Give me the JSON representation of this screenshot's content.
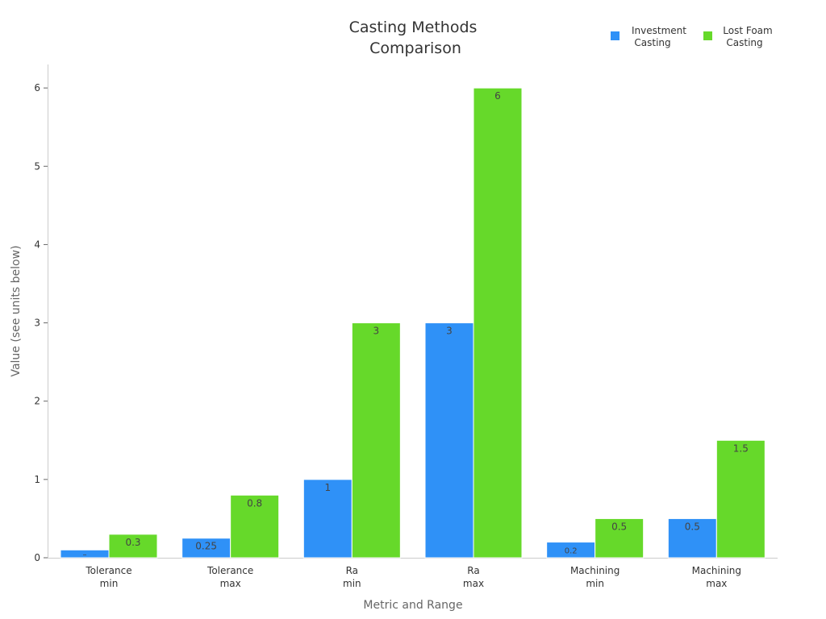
{
  "chart_data": {
    "type": "bar",
    "title": [
      "Casting Methods",
      "Comparison"
    ],
    "xlabel": "Metric and Range",
    "ylabel": "Value (see units below)",
    "categories": [
      [
        "Tolerance",
        "min"
      ],
      [
        "Tolerance",
        "max"
      ],
      [
        "Ra",
        "min"
      ],
      [
        "Ra",
        "max"
      ],
      [
        "Machining",
        "min"
      ],
      [
        "Machining",
        "max"
      ]
    ],
    "series": [
      {
        "name": [
          "Investment",
          "Casting"
        ],
        "color": "#2f91f7",
        "values": [
          0.1,
          0.25,
          1,
          3,
          0.2,
          0.5
        ],
        "labels": [
          "–",
          "0.25",
          "1",
          "3",
          "0.2",
          "0.5"
        ]
      },
      {
        "name": [
          "Lost Foam",
          "Casting"
        ],
        "color": "#66d92a",
        "values": [
          0.3,
          0.8,
          3,
          6,
          0.5,
          1.5
        ],
        "labels": [
          "0.3",
          "0.8",
          "3",
          "6",
          "0.5",
          "1.5"
        ]
      }
    ],
    "ylim": [
      0,
      6.3
    ],
    "yticks": [
      0,
      1,
      2,
      3,
      4,
      5,
      6
    ],
    "grid": false,
    "legend_position": "top-right"
  }
}
